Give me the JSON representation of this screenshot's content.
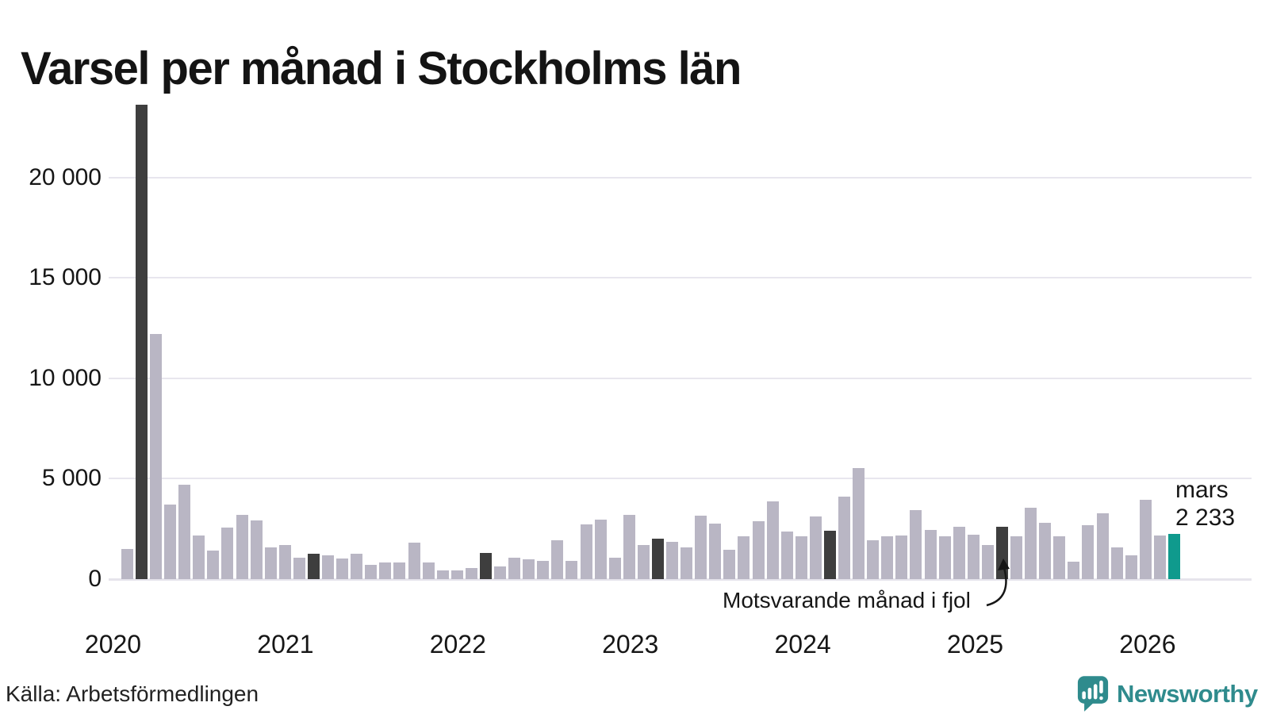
{
  "title": "Varsel per månad i Stockholms län",
  "source": "Källa: Arbetsförmedlingen",
  "logo": {
    "brand": "Newsworthy",
    "icon": "speech-bubble-barchart-icon",
    "color": "#2f8b8d"
  },
  "annotation": {
    "text": "Motsvarande månad i fjol",
    "points_to": "mar 2025"
  },
  "current_label": {
    "month": "mars",
    "value": "2 233"
  },
  "colors": {
    "bar": "#b9b6c4",
    "march_previous_years": "#3e3e3e",
    "current_month": "#0f9a8d",
    "gridline": "#e8e6ee",
    "text": "#161616"
  },
  "chart_data": {
    "type": "bar",
    "title": "Varsel per månad i Stockholms län",
    "xlabel": "",
    "ylabel": "",
    "ylim": [
      0,
      24000
    ],
    "grid": true,
    "legend": "none",
    "y_ticks": [
      {
        "value": 0,
        "label": "0"
      },
      {
        "value": 5000,
        "label": "5 000"
      },
      {
        "value": 10000,
        "label": "10 000"
      },
      {
        "value": 15000,
        "label": "15 000"
      },
      {
        "value": 20000,
        "label": "20 000"
      }
    ],
    "x_ticks": [
      {
        "year": 2020,
        "label": "2020"
      },
      {
        "year": 2021,
        "label": "2021"
      },
      {
        "year": 2022,
        "label": "2022"
      },
      {
        "year": 2023,
        "label": "2023"
      },
      {
        "year": 2024,
        "label": "2024"
      },
      {
        "year": 2025,
        "label": "2025"
      },
      {
        "year": 2026,
        "label": "2026"
      }
    ],
    "points": [
      [
        "feb 2020",
        1500
      ],
      [
        "mar 2020",
        23600
      ],
      [
        "apr 2020",
        12200
      ],
      [
        "maj 2020",
        3700
      ],
      [
        "jun 2020",
        4700
      ],
      [
        "jul 2020",
        2150
      ],
      [
        "aug 2020",
        1400
      ],
      [
        "sep 2020",
        2550
      ],
      [
        "okt 2020",
        3200
      ],
      [
        "nov 2020",
        2900
      ],
      [
        "dec 2020",
        1550
      ],
      [
        "jan 2021",
        1700
      ],
      [
        "feb 2021",
        1050
      ],
      [
        "mar 2021",
        1250
      ],
      [
        "apr 2021",
        1150
      ],
      [
        "maj 2021",
        1000
      ],
      [
        "jun 2021",
        1250
      ],
      [
        "jul 2021",
        700
      ],
      [
        "aug 2021",
        800
      ],
      [
        "sep 2021",
        800
      ],
      [
        "okt 2021",
        1800
      ],
      [
        "nov 2021",
        800
      ],
      [
        "dec 2021",
        400
      ],
      [
        "jan 2022",
        400
      ],
      [
        "feb 2022",
        550
      ],
      [
        "mar 2022",
        1300
      ],
      [
        "apr 2022",
        600
      ],
      [
        "maj 2022",
        1050
      ],
      [
        "jun 2022",
        950
      ],
      [
        "jul 2022",
        900
      ],
      [
        "aug 2022",
        1900
      ],
      [
        "sep 2022",
        900
      ],
      [
        "okt 2022",
        2700
      ],
      [
        "nov 2022",
        2950
      ],
      [
        "dec 2022",
        1050
      ],
      [
        "jan 2023",
        3200
      ],
      [
        "feb 2023",
        1700
      ],
      [
        "mar 2023",
        2000
      ],
      [
        "apr 2023",
        1850
      ],
      [
        "maj 2023",
        1550
      ],
      [
        "jun 2023",
        3150
      ],
      [
        "jul 2023",
        2750
      ],
      [
        "aug 2023",
        1450
      ],
      [
        "sep 2023",
        2100
      ],
      [
        "okt 2023",
        2850
      ],
      [
        "nov 2023",
        3850
      ],
      [
        "dec 2023",
        2350
      ],
      [
        "jan 2024",
        2100
      ],
      [
        "feb 2024",
        3100
      ],
      [
        "mar 2024",
        2400
      ],
      [
        "apr 2024",
        4100
      ],
      [
        "maj 2024",
        5500
      ],
      [
        "jun 2024",
        1900
      ],
      [
        "jul 2024",
        2100
      ],
      [
        "aug 2024",
        2150
      ],
      [
        "sep 2024",
        3400
      ],
      [
        "okt 2024",
        2450
      ],
      [
        "nov 2024",
        2100
      ],
      [
        "dec 2024",
        2600
      ],
      [
        "jan 2025",
        2200
      ],
      [
        "feb 2025",
        1700
      ],
      [
        "mar 2025",
        2600
      ],
      [
        "apr 2025",
        2100
      ],
      [
        "maj 2025",
        3550
      ],
      [
        "jun 2025",
        2800
      ],
      [
        "jul 2025",
        2100
      ],
      [
        "aug 2025",
        850
      ],
      [
        "sep 2025",
        2650
      ],
      [
        "okt 2025",
        3250
      ],
      [
        "nov 2025",
        1550
      ],
      [
        "dec 2025",
        1150
      ],
      [
        "jan 2026",
        3950
      ],
      [
        "feb 2026",
        2150
      ],
      [
        "mar 2026",
        2233
      ]
    ],
    "march_indices": [
      1,
      13,
      25,
      37,
      49,
      61
    ],
    "current_index": 73
  }
}
